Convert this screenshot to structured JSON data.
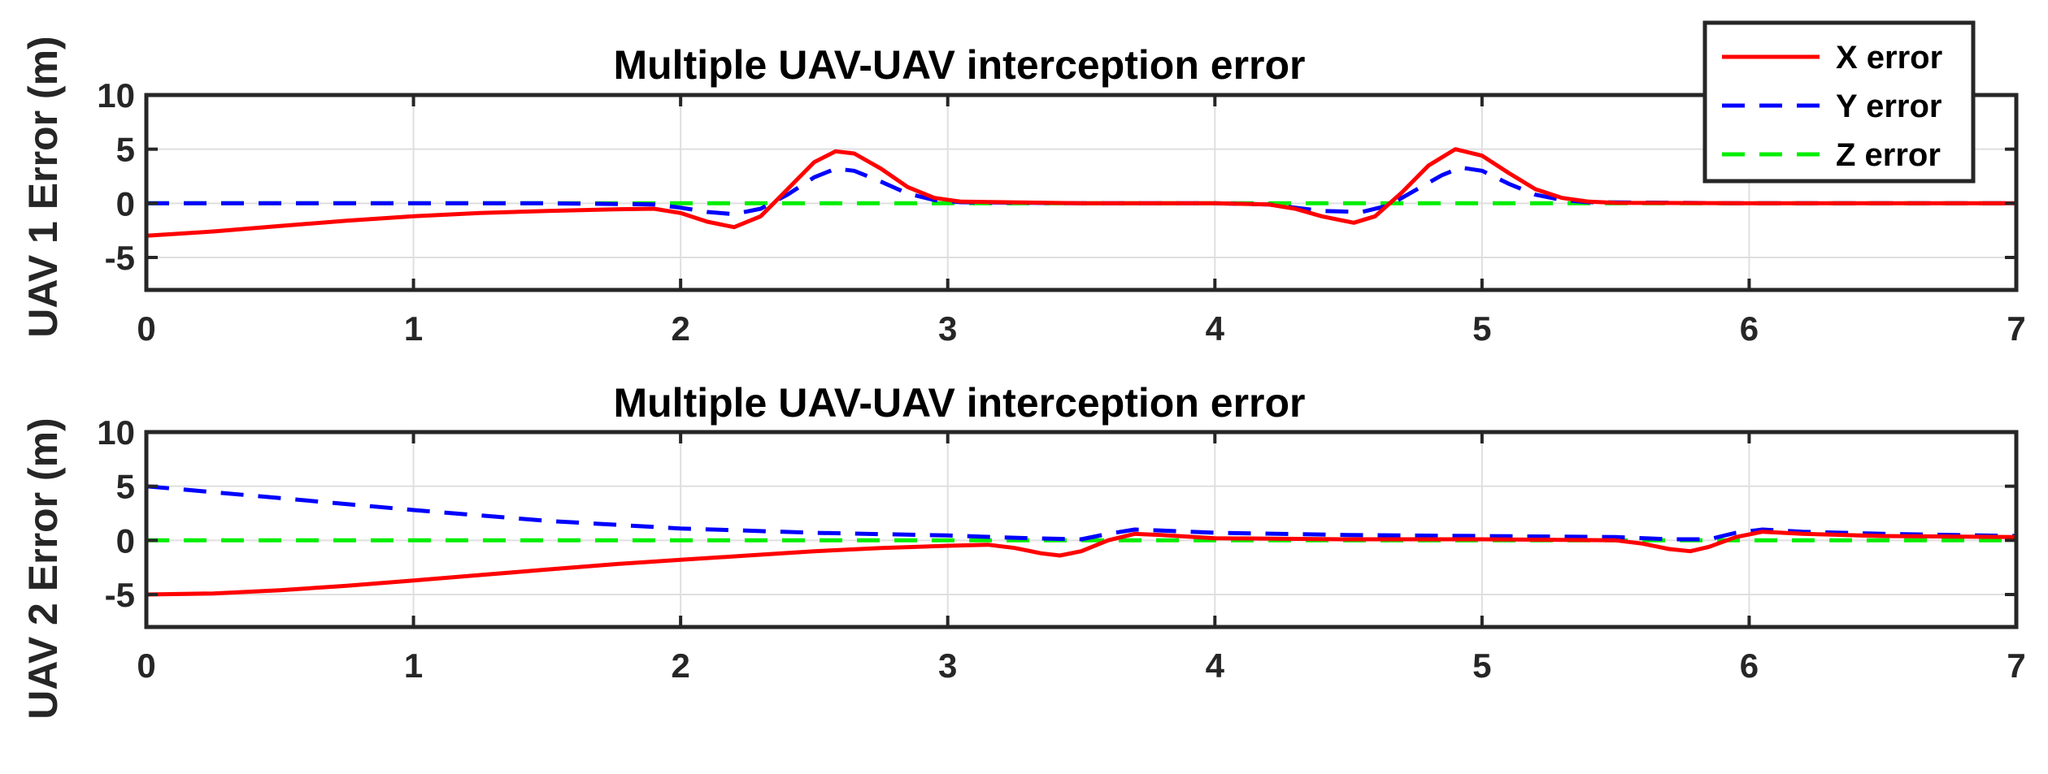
{
  "chart_data": [
    {
      "type": "line",
      "title": "Multiple UAV-UAV interception error",
      "ylabel": "UAV 1 Error (m)",
      "xlabel": "",
      "xlim": [
        0,
        7
      ],
      "ylim": [
        -8,
        10
      ],
      "xticks": [
        0,
        1,
        2,
        3,
        4,
        5,
        6,
        7
      ],
      "yticks": [
        -5,
        0,
        5,
        10
      ],
      "grid": true,
      "legend_position": "top-right",
      "series": [
        {
          "name": "X error",
          "color": "#ff0000",
          "style": "solid",
          "x": [
            0,
            0.25,
            0.5,
            0.75,
            1.0,
            1.25,
            1.5,
            1.75,
            1.9,
            2.0,
            2.1,
            2.2,
            2.3,
            2.4,
            2.5,
            2.58,
            2.65,
            2.75,
            2.85,
            2.95,
            3.05,
            3.5,
            4.0,
            4.2,
            4.3,
            4.4,
            4.52,
            4.6,
            4.7,
            4.8,
            4.9,
            5.0,
            5.1,
            5.2,
            5.3,
            5.4,
            5.5,
            6.0,
            6.5,
            7.0
          ],
          "y": [
            -3.0,
            -2.6,
            -2.1,
            -1.6,
            -1.2,
            -0.9,
            -0.7,
            -0.55,
            -0.5,
            -0.9,
            -1.7,
            -2.2,
            -1.2,
            1.3,
            3.8,
            4.8,
            4.6,
            3.2,
            1.5,
            0.5,
            0.15,
            0.0,
            0.0,
            -0.1,
            -0.5,
            -1.2,
            -1.8,
            -1.2,
            1.0,
            3.5,
            5.0,
            4.4,
            2.8,
            1.3,
            0.5,
            0.15,
            0.05,
            0.0,
            0.0,
            0.0
          ]
        },
        {
          "name": "Y error",
          "color": "#0000ff",
          "style": "dashed",
          "x": [
            0,
            0.5,
            1.0,
            1.5,
            1.9,
            2.0,
            2.1,
            2.2,
            2.3,
            2.4,
            2.5,
            2.58,
            2.65,
            2.75,
            2.85,
            2.95,
            3.05,
            3.5,
            4.0,
            4.2,
            4.3,
            4.4,
            4.55,
            4.65,
            4.75,
            4.85,
            4.92,
            5.0,
            5.1,
            5.2,
            5.3,
            5.4,
            6.0,
            7.0
          ],
          "y": [
            0.0,
            0.0,
            0.0,
            0.0,
            -0.1,
            -0.4,
            -0.8,
            -1.0,
            -0.5,
            0.8,
            2.4,
            3.2,
            3.0,
            2.0,
            0.9,
            0.3,
            0.1,
            0.0,
            0.0,
            -0.1,
            -0.4,
            -0.7,
            -0.8,
            -0.2,
            1.2,
            2.6,
            3.3,
            3.0,
            1.8,
            0.8,
            0.3,
            0.1,
            0.0,
            0.0
          ]
        },
        {
          "name": "Z error",
          "color": "#00ee00",
          "style": "dashed",
          "x": [
            0,
            7
          ],
          "y": [
            0,
            0
          ]
        }
      ]
    },
    {
      "type": "line",
      "title": "Multiple UAV-UAV interception error",
      "ylabel": "UAV 2 Error (m)",
      "xlabel": "",
      "xlim": [
        0,
        7
      ],
      "ylim": [
        -8,
        10
      ],
      "xticks": [
        0,
        1,
        2,
        3,
        4,
        5,
        6,
        7
      ],
      "yticks": [
        -5,
        0,
        5,
        10
      ],
      "grid": true,
      "series": [
        {
          "name": "X error",
          "color": "#ff0000",
          "style": "solid",
          "x": [
            0,
            0.25,
            0.5,
            0.75,
            1.0,
            1.25,
            1.5,
            1.75,
            2.0,
            2.25,
            2.5,
            2.75,
            3.0,
            3.15,
            3.25,
            3.35,
            3.42,
            3.5,
            3.6,
            3.7,
            3.8,
            4.0,
            4.5,
            5.0,
            5.5,
            5.6,
            5.7,
            5.78,
            5.85,
            5.95,
            6.05,
            6.2,
            6.5,
            7.0
          ],
          "y": [
            -5.0,
            -4.9,
            -4.6,
            -4.2,
            -3.7,
            -3.2,
            -2.7,
            -2.2,
            -1.8,
            -1.4,
            -1.0,
            -0.7,
            -0.5,
            -0.4,
            -0.7,
            -1.2,
            -1.4,
            -1.0,
            0.0,
            0.6,
            0.5,
            0.2,
            0.1,
            0.1,
            0.0,
            -0.3,
            -0.8,
            -1.0,
            -0.6,
            0.3,
            0.8,
            0.6,
            0.4,
            0.3
          ]
        },
        {
          "name": "Y error",
          "color": "#0000ff",
          "style": "dashed",
          "x": [
            0,
            0.5,
            1.0,
            1.5,
            2.0,
            2.5,
            3.0,
            3.3,
            3.5,
            3.6,
            3.7,
            3.8,
            4.0,
            4.5,
            5.0,
            5.5,
            5.7,
            5.85,
            5.95,
            6.05,
            6.2,
            6.5,
            7.0
          ],
          "y": [
            5.0,
            3.9,
            2.8,
            1.8,
            1.1,
            0.7,
            0.45,
            0.2,
            0.1,
            0.6,
            1.0,
            0.9,
            0.7,
            0.5,
            0.4,
            0.3,
            0.1,
            0.1,
            0.7,
            1.0,
            0.8,
            0.6,
            0.4
          ]
        },
        {
          "name": "Z error",
          "color": "#00ee00",
          "style": "dashed",
          "x": [
            0,
            7
          ],
          "y": [
            0,
            0
          ]
        }
      ]
    }
  ]
}
